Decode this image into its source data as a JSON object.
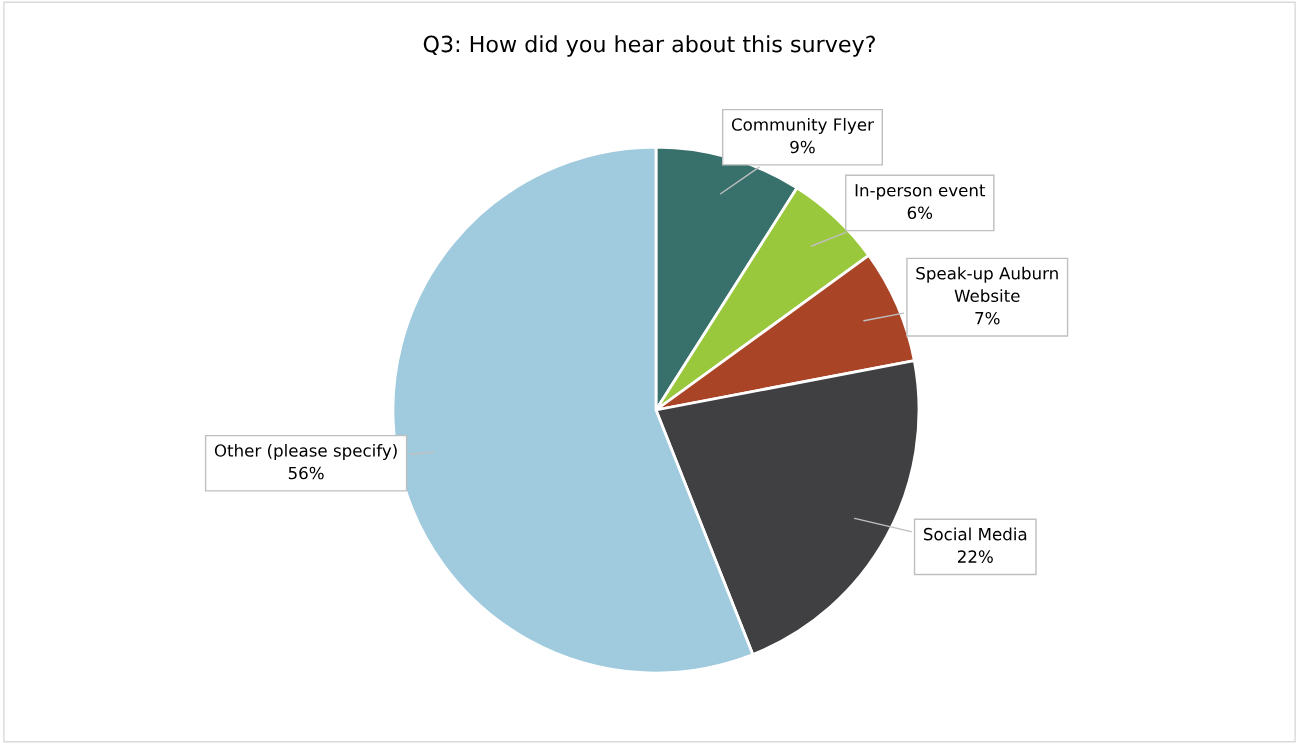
{
  "chart_data": {
    "type": "pie",
    "title": "Q3: How did you hear about this survey?",
    "categories": [
      "Community Flyer",
      "In-person event",
      "Speak-up Auburn Website",
      "Social Media",
      "Other (please specify)"
    ],
    "values": [
      9,
      6,
      7,
      22,
      56
    ],
    "value_labels": [
      "9%",
      "6%",
      "7%",
      "22%",
      "56%"
    ],
    "colors": [
      "#38716c",
      "#9ac83c",
      "#a94427",
      "#404042",
      "#a0cade"
    ],
    "legend": false
  }
}
